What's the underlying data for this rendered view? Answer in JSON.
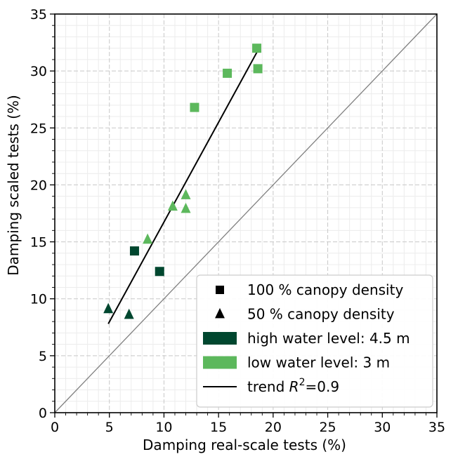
{
  "chart_data": {
    "type": "scatter",
    "xlabel": "Damping real-scale tests (%)",
    "ylabel": "Damping scaled tests (%)",
    "xlim": [
      0,
      35
    ],
    "ylim": [
      0,
      35
    ],
    "x_ticks": [
      0,
      5,
      10,
      15,
      20,
      25,
      30,
      35
    ],
    "y_ticks": [
      0,
      5,
      10,
      15,
      20,
      25,
      30,
      35
    ],
    "x_tick_labels": [
      "0",
      "5",
      "10",
      "15",
      "20",
      "25",
      "30",
      "35"
    ],
    "y_tick_labels": [
      "0",
      "5",
      "10",
      "15",
      "20",
      "25",
      "30",
      "35"
    ],
    "grid": "major dashed and minor gridlines",
    "legend_position": "lower-right",
    "colors": {
      "high_water": "#00472f",
      "low_water": "#5cb85c",
      "trend": "#000000",
      "identity_line": "#808080"
    },
    "series": [
      {
        "name": "high water level, 100 % canopy density",
        "marker": "square",
        "color": "#00472f",
        "points": [
          [
            7.3,
            14.2
          ],
          [
            9.6,
            12.4
          ]
        ]
      },
      {
        "name": "high water level, 50 % canopy density",
        "marker": "triangle",
        "color": "#00472f",
        "points": [
          [
            4.9,
            9.1
          ],
          [
            6.8,
            8.6
          ]
        ]
      },
      {
        "name": "low water level, 100 % canopy density",
        "marker": "square",
        "color": "#5cb85c",
        "points": [
          [
            12.8,
            26.8
          ],
          [
            15.8,
            29.8
          ],
          [
            18.5,
            32.0
          ],
          [
            18.6,
            30.2
          ]
        ]
      },
      {
        "name": "low water level, 50 % canopy density",
        "marker": "triangle",
        "color": "#5cb85c",
        "points": [
          [
            8.5,
            15.2
          ],
          [
            10.8,
            18.1
          ],
          [
            12.0,
            19.1
          ],
          [
            12.0,
            17.9
          ]
        ]
      }
    ],
    "trend_line": {
      "x": [
        4.9,
        18.6
      ],
      "y": [
        7.8,
        31.8
      ],
      "r_squared": 0.9
    },
    "identity_line": {
      "x": [
        0,
        35
      ],
      "y": [
        0,
        35
      ]
    },
    "legend": [
      {
        "symbol": "square",
        "color": "#000000",
        "label": "100 % canopy density"
      },
      {
        "symbol": "triangle",
        "color": "#000000",
        "label": "50 % canopy density"
      },
      {
        "symbol": "patch",
        "color": "#00472f",
        "label": "high water level: 4.5 m"
      },
      {
        "symbol": "patch",
        "color": "#5cb85c",
        "label": "low water level: 3 m"
      },
      {
        "symbol": "line",
        "color": "#000000",
        "label_prefix": "trend ",
        "label_var": "R",
        "label_sup": "2",
        "label_suffix": "=0.9"
      }
    ]
  }
}
